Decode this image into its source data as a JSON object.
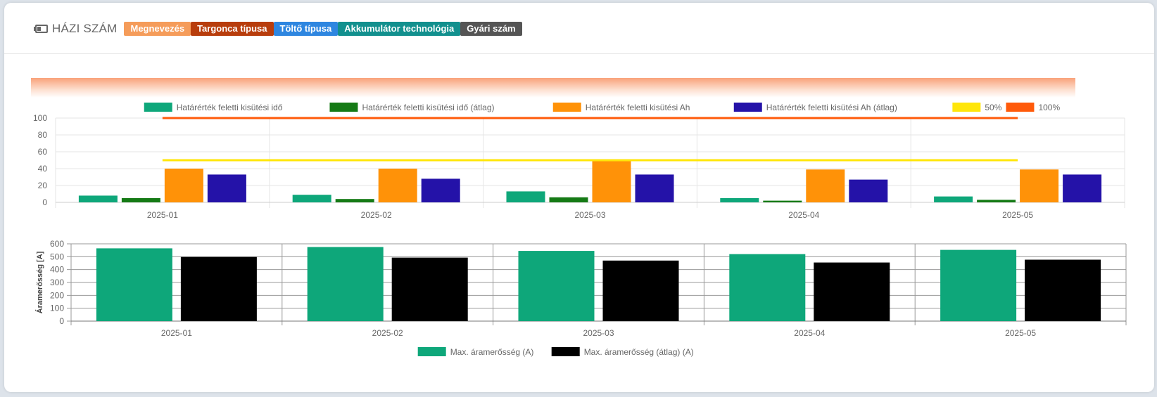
{
  "header": {
    "title": "HÁZI SZÁM",
    "badges": [
      {
        "label": "Megnevezés",
        "color": "#f59c5a"
      },
      {
        "label": "Targonca típusa",
        "color": "#b83d0c"
      },
      {
        "label": "Töltő típusa",
        "color": "#2e86e0"
      },
      {
        "label": "Akkumulátor technológia",
        "color": "#12908e"
      },
      {
        "label": "Gyári szám",
        "color": "#555555"
      }
    ]
  },
  "chart_data": [
    {
      "type": "bar",
      "categories": [
        "2025-01",
        "2025-02",
        "2025-03",
        "2025-04",
        "2025-05"
      ],
      "series": [
        {
          "name": "Határérték feletti kisütési idő",
          "values": [
            8,
            9,
            13,
            5,
            7
          ],
          "color": "#0ea77a"
        },
        {
          "name": "Határérték feletti kisütési idő (átlag)",
          "values": [
            5,
            4,
            6,
            2,
            3
          ],
          "color": "#157a15"
        },
        {
          "name": "Határérték feletti kisütési Ah",
          "values": [
            40,
            40,
            51,
            39,
            39
          ],
          "color": "#ff9208"
        },
        {
          "name": "Határérték feletti kisütési Ah (átlag)",
          "values": [
            33,
            28,
            33,
            27,
            33
          ],
          "color": "#2412a8"
        }
      ],
      "lines": [
        {
          "name": "50%",
          "value": 50,
          "color": "#ffe60a"
        },
        {
          "name": "100%",
          "value": 100,
          "color": "#ff5a0a"
        }
      ],
      "ylim": [
        0,
        100
      ],
      "yticks": [
        0,
        20,
        40,
        60,
        80,
        100
      ],
      "legend": "top",
      "grid": true
    },
    {
      "type": "bar",
      "categories": [
        "2025-01",
        "2025-02",
        "2025-03",
        "2025-04",
        "2025-05"
      ],
      "series": [
        {
          "name": "Max. áramerősség (A)",
          "values": [
            565,
            575,
            545,
            520,
            553
          ],
          "color": "#0ea77a"
        },
        {
          "name": "Max. áramerősség (átlag) (A)",
          "values": [
            498,
            493,
            470,
            455,
            477
          ],
          "color": "#000000"
        }
      ],
      "ylabel": "Áramerősség [A]",
      "ylim": [
        0,
        600
      ],
      "yticks": [
        0,
        100,
        200,
        300,
        400,
        500,
        600
      ],
      "legend": "bottom",
      "grid": true
    }
  ]
}
